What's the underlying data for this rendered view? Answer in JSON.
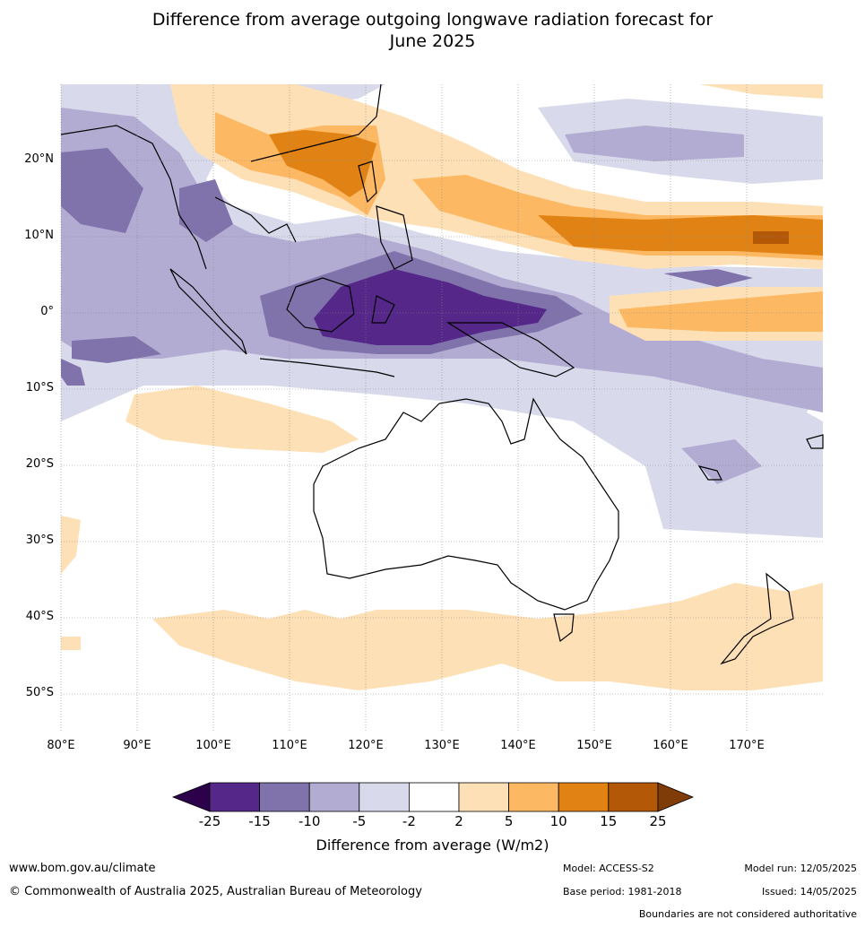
{
  "title_line1": "Difference from average outgoing longwave radiation forecast for",
  "title_line2": "June 2025",
  "lat_labels": [
    "20°N",
    "10°N",
    "0°",
    "10°S",
    "20°S",
    "30°S",
    "40°S",
    "50°S"
  ],
  "lon_labels": [
    "80°E",
    "90°E",
    "100°E",
    "110°E",
    "120°E",
    "130°E",
    "140°E",
    "150°E",
    "160°E",
    "170°E"
  ],
  "colorbar": {
    "ticks": [
      "-25",
      "-15",
      "-10",
      "-5",
      "-2",
      "2",
      "5",
      "10",
      "15",
      "25"
    ],
    "colors": [
      "#2d004b",
      "#542788",
      "#8073ac",
      "#b2abd2",
      "#d8daeb",
      "#ffffff",
      "#fee0b6",
      "#fdb863",
      "#e08214",
      "#b35806",
      "#7f3b08"
    ],
    "label": "Difference from average (W/m2)"
  },
  "footer": {
    "website": "www.bom.gov.au/climate",
    "copyright": "© Commonwealth of Australia 2025, Australian Bureau of Meteorology",
    "model": "Model: ACCESS-S2",
    "base_period": "Base period: 1981-2018",
    "model_run": "Model run: 12/05/2025",
    "issued": "Issued: 14/05/2025",
    "disclaimer": "Boundaries are not considered authoritative"
  },
  "map_extent": {
    "lon": [
      80,
      180
    ],
    "lat": [
      -55,
      30
    ]
  }
}
